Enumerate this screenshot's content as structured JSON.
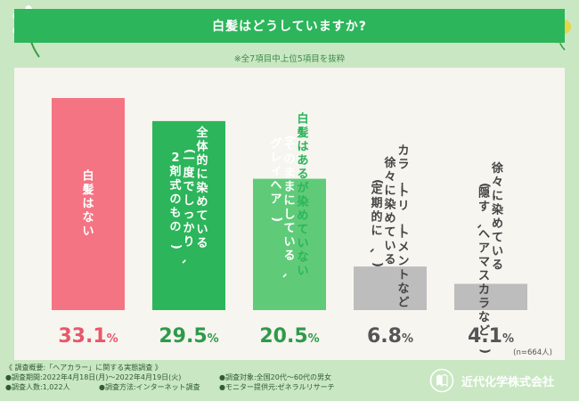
{
  "title": "白髪はどうしていますか?",
  "note": "※全7項目中上位5項目を抜粋",
  "sample_size": "(n=664人)",
  "chart_data": {
    "type": "bar",
    "title": "白髪はどうしていますか?",
    "ylabel": "",
    "xlabel": "",
    "ylim": [
      0,
      35
    ],
    "categories": [
      "白髪はない",
      "全体的に染めている(一度でしっかり、2剤式のもの)",
      "白髪はあるが染めていない(そのままにしている、グレイヘア)",
      "カラートリートメントなど徐々に染めている(定期的に、)",
      "徐々に染めている(隠す、ヘアマスカラなど)"
    ],
    "values": [
      33.1,
      29.5,
      20.5,
      6.8,
      4.1
    ],
    "value_labels": [
      {
        "num": "33.1",
        "pct": "%"
      },
      {
        "num": "29.5",
        "pct": "%"
      },
      {
        "num": "20.5",
        "pct": "%"
      },
      {
        "num": "6.8",
        "pct": "%"
      },
      {
        "num": "4.1",
        "pct": "%"
      }
    ],
    "bar_label_columns": [
      [
        "白髪はない"
      ],
      [
        "全体的に染めている",
        "(一度でしっかり、",
        "2剤式のもの)"
      ],
      [
        "白髪はあるが染めていない",
        "(そのままにしている、",
        "グレイヘア)"
      ],
      [
        "カラートリートメントなど",
        "徐々に染めている",
        "(定期的に、)"
      ],
      [
        "徐々に染めている",
        "(隠す、ヘアマスカラなど)"
      ]
    ],
    "colors": [
      "#f47483",
      "#2cb55a",
      "#5fcb79",
      "#bdbdbd",
      "#bdbdbd"
    ],
    "text_colors": [
      "#ffffff",
      "#ffffff",
      "#ffffff",
      "#444444",
      "#444444"
    ],
    "value_colors": [
      "#e8576a",
      "#2e9a4a",
      "#2e9a4a",
      "#555555",
      "#555555"
    ]
  },
  "footer": {
    "overview": "《 調査概要:「ヘアカラー」に関する実態調査 》",
    "period": "●調査期間:2022年4月18日(月)〜2022年4月19日(火)",
    "target": "●調査対象:全国20代〜60代の男女",
    "count": "●調査人数:1,022人",
    "method": "●調査方法:インターネット調査",
    "provider": "●モニター提供元:ゼネラルリサーチ"
  },
  "company": "近代化学株式会社"
}
